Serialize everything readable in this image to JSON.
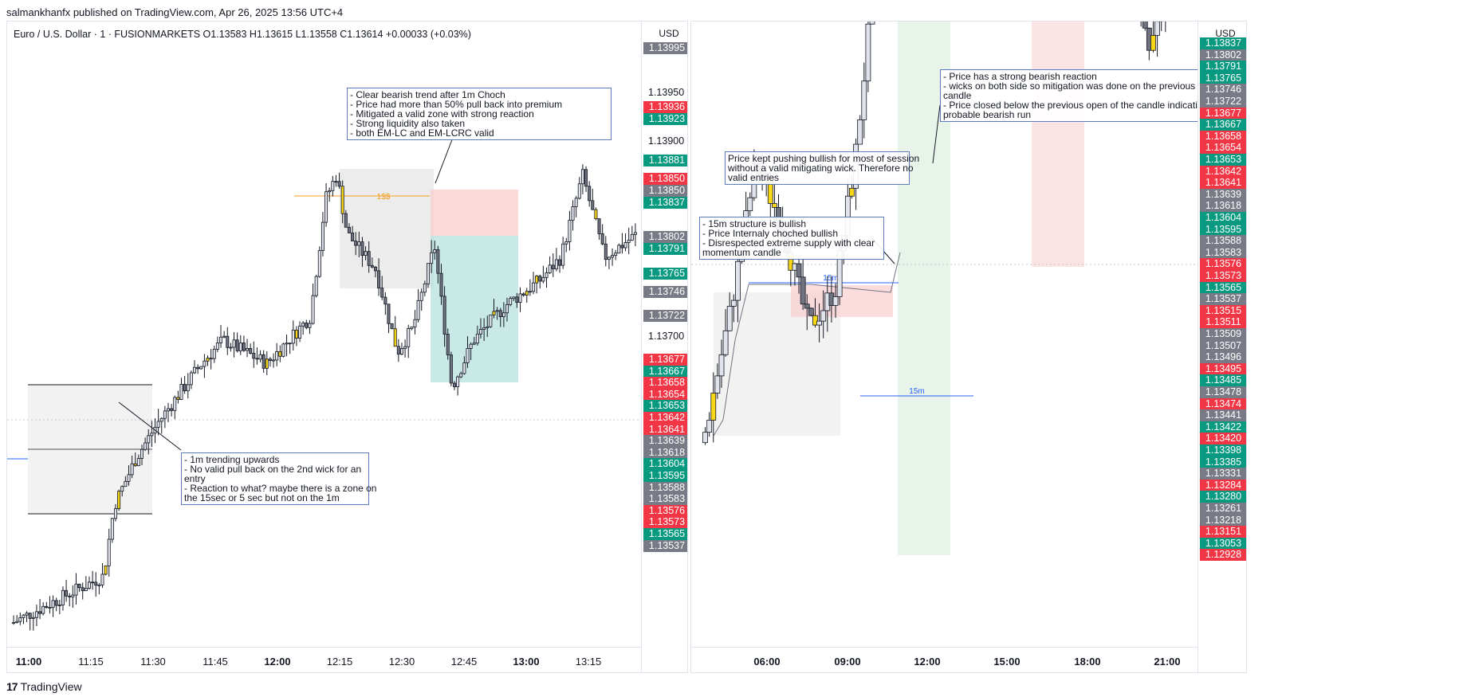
{
  "header": {
    "publisher_text": "salmankhanfx published on TradingView.com, Apr 26, 2025 13:56 UTC+4"
  },
  "footer": {
    "brand": "TradingView",
    "logo_glyph": "17"
  },
  "left_chart": {
    "legend": "Euro / U.S. Dollar · 1 · FUSIONMARKETS   O1.13583   H1.13615   L1.13558   C1.13614   +0.00033 (+0.03%)",
    "currency": "USD",
    "price_ticks": [
      "1.13950",
      "1.13900",
      "1.13700"
    ],
    "price_badges": [
      {
        "text": "1.13995",
        "color": "gray"
      },
      {
        "text": "1.13936",
        "color": "red"
      },
      {
        "text": "1.13923",
        "color": "green"
      },
      {
        "text": "1.13881",
        "color": "green"
      },
      {
        "text": "1.13850",
        "color": "red"
      },
      {
        "text": "1.13850",
        "color": "gray"
      },
      {
        "text": "1.13837",
        "color": "green"
      },
      {
        "text": "1.13802",
        "color": "gray"
      },
      {
        "text": "1.13791",
        "color": "green"
      },
      {
        "text": "1.13765",
        "color": "green"
      },
      {
        "text": "1.13746",
        "color": "gray"
      },
      {
        "text": "1.13722",
        "color": "gray"
      },
      {
        "text": "1.13677",
        "color": "red"
      },
      {
        "text": "1.13667",
        "color": "green"
      },
      {
        "text": "1.13658",
        "color": "red"
      },
      {
        "text": "1.13654",
        "color": "red"
      },
      {
        "text": "1.13653",
        "color": "green"
      },
      {
        "text": "1.13642",
        "color": "red"
      },
      {
        "text": "1.13641",
        "color": "red"
      },
      {
        "text": "1.13639",
        "color": "gray"
      },
      {
        "text": "1.13618",
        "color": "gray"
      },
      {
        "text": "1.13604",
        "color": "green"
      },
      {
        "text": "1.13595",
        "color": "green"
      },
      {
        "text": "1.13588",
        "color": "gray"
      },
      {
        "text": "1.13583",
        "color": "gray"
      },
      {
        "text": "1.13576",
        "color": "red"
      },
      {
        "text": "1.13573",
        "color": "red"
      },
      {
        "text": "1.13565",
        "color": "green"
      },
      {
        "text": "1.13537",
        "color": "gray"
      }
    ],
    "time_labels": [
      {
        "text": "11:00",
        "bold": true
      },
      {
        "text": "11:15",
        "bold": false
      },
      {
        "text": "11:30",
        "bold": false
      },
      {
        "text": "11:45",
        "bold": false
      },
      {
        "text": "12:00",
        "bold": true
      },
      {
        "text": "12:15",
        "bold": false
      },
      {
        "text": "12:30",
        "bold": false
      },
      {
        "text": "12:45",
        "bold": false
      },
      {
        "text": "13:00",
        "bold": true
      },
      {
        "text": "13:15",
        "bold": false
      }
    ],
    "annotations": {
      "bearish_note": [
        "- Clear bearish trend after 1m Choch",
        "- Price had more than 50% pull back into premium",
        "- Mitigated a valid zone with strong reaction",
        "- Strong liquidity also taken",
        "- both EM-LC and EM-LCRC valid"
      ],
      "trend_note": [
        "- 1m trending upwards",
        "- No valid pull back on the 2nd wick for an",
        "entry",
        "- Reaction to what? maybe there is a zone on",
        "the 15sec or 5 sec but not on the 1m"
      ],
      "liquidity_label": "1$$"
    }
  },
  "right_chart": {
    "currency": "USD",
    "price_badges": [
      {
        "text": "1.13837",
        "color": "green"
      },
      {
        "text": "1.13802",
        "color": "gray"
      },
      {
        "text": "1.13791",
        "color": "green"
      },
      {
        "text": "1.13765",
        "color": "green"
      },
      {
        "text": "1.13746",
        "color": "gray"
      },
      {
        "text": "1.13722",
        "color": "gray"
      },
      {
        "text": "1.13677",
        "color": "red"
      },
      {
        "text": "1.13667",
        "color": "green"
      },
      {
        "text": "1.13658",
        "color": "red"
      },
      {
        "text": "1.13654",
        "color": "red"
      },
      {
        "text": "1.13653",
        "color": "green"
      },
      {
        "text": "1.13642",
        "color": "red"
      },
      {
        "text": "1.13641",
        "color": "red"
      },
      {
        "text": "1.13639",
        "color": "gray"
      },
      {
        "text": "1.13618",
        "color": "gray"
      },
      {
        "text": "1.13604",
        "color": "green"
      },
      {
        "text": "1.13595",
        "color": "green"
      },
      {
        "text": "1.13588",
        "color": "gray"
      },
      {
        "text": "1.13583",
        "color": "gray"
      },
      {
        "text": "1.13576",
        "color": "red"
      },
      {
        "text": "1.13573",
        "color": "red"
      },
      {
        "text": "1.13565",
        "color": "green"
      },
      {
        "text": "1.13537",
        "color": "gray"
      },
      {
        "text": "1.13515",
        "color": "red"
      },
      {
        "text": "1.13511",
        "color": "red"
      },
      {
        "text": "1.13509",
        "color": "gray"
      },
      {
        "text": "1.13507",
        "color": "gray"
      },
      {
        "text": "1.13496",
        "color": "gray"
      },
      {
        "text": "1.13495",
        "color": "red"
      },
      {
        "text": "1.13485",
        "color": "green"
      },
      {
        "text": "1.13478",
        "color": "gray"
      },
      {
        "text": "1.13474",
        "color": "red"
      },
      {
        "text": "1.13441",
        "color": "gray"
      },
      {
        "text": "1.13422",
        "color": "green"
      },
      {
        "text": "1.13420",
        "color": "red"
      },
      {
        "text": "1.13398",
        "color": "green"
      },
      {
        "text": "1.13385",
        "color": "green"
      },
      {
        "text": "1.13331",
        "color": "gray"
      },
      {
        "text": "1.13284",
        "color": "red"
      },
      {
        "text": "1.13280",
        "color": "green"
      },
      {
        "text": "1.13261",
        "color": "gray"
      },
      {
        "text": "1.13218",
        "color": "gray"
      },
      {
        "text": "1.13151",
        "color": "red"
      },
      {
        "text": "1.13053",
        "color": "green"
      },
      {
        "text": "1.12928",
        "color": "red"
      }
    ],
    "time_labels": [
      {
        "text": "06:00",
        "bold": true
      },
      {
        "text": "09:00",
        "bold": true
      },
      {
        "text": "12:00",
        "bold": true
      },
      {
        "text": "15:00",
        "bold": true
      },
      {
        "text": "18:00",
        "bold": true
      },
      {
        "text": "21:00",
        "bold": true
      }
    ],
    "annotations": {
      "bearish_reaction_note": [
        "- Price has a strong bearish reaction",
        "- wicks on both side so mitigation was done on the previous bullish",
        "candle",
        "- Price closed below the previous open of the candle indicating a",
        "probable bearish run"
      ],
      "bullish_push_note": [
        "Price kept pushing bullish for most of session",
        "without a valid mitigating wick. Therefore no",
        "valid entries"
      ],
      "structure_note": [
        "- 15m structure is bullish",
        "- Price Internaly choched bullish",
        "- Disrespected extreme supply with clear",
        "momentum candle"
      ],
      "label_15m_top": "15m",
      "label_15m_bottom": "15m"
    }
  },
  "colors": {
    "red": "#f23645",
    "green": "#089981",
    "gray": "#787b86",
    "bull_candle": "#e0e3eb",
    "bear_candle": "#707480",
    "highlight_candle": "#f7d716",
    "sell_zone": "#f9cfd0",
    "buy_zone": "#b2dfdb",
    "grey_zone": "#eeeeee"
  },
  "chart_data": [
    {
      "type": "candlestick",
      "title": "Euro / U.S. Dollar · 1 · FUSIONMARKETS",
      "timeframe": "1",
      "ohlc_last": {
        "open": 1.13583,
        "high": 1.13615,
        "low": 1.13558,
        "close": 1.13614,
        "change": 0.00033,
        "change_pct": 0.03
      },
      "x_ticks": [
        "11:00",
        "11:15",
        "11:30",
        "11:45",
        "12:00",
        "12:15",
        "12:30",
        "12:45",
        "13:00",
        "13:15"
      ],
      "y_ticks": [
        1.1395,
        1.139,
        1.137
      ],
      "ylim": [
        1.135,
        1.1403
      ],
      "price_path": [
        [
          10.58,
          1.1352
        ],
        [
          11.0,
          1.1356
        ],
        [
          11.05,
          1.1362
        ],
        [
          11.15,
          1.1366
        ],
        [
          11.25,
          1.1369
        ],
        [
          11.45,
          1.1374
        ],
        [
          11.55,
          1.1376
        ],
        [
          11.75,
          1.1374
        ],
        [
          11.95,
          1.1378
        ],
        [
          12.02,
          1.1388
        ],
        [
          12.07,
          1.139
        ],
        [
          12.12,
          1.1385
        ],
        [
          12.25,
          1.1382
        ],
        [
          12.35,
          1.1375
        ],
        [
          12.42,
          1.1377
        ],
        [
          12.52,
          1.1384
        ],
        [
          12.6,
          1.1372
        ],
        [
          12.7,
          1.1376
        ],
        [
          12.85,
          1.1379
        ],
        [
          13.0,
          1.1381
        ],
        [
          13.1,
          1.1383
        ],
        [
          13.2,
          1.139
        ],
        [
          13.3,
          1.1383
        ],
        [
          13.45,
          1.1385
        ]
      ],
      "zones": [
        {
          "kind": "sell",
          "top": 1.1385,
          "bottom": 1.1379
        },
        {
          "kind": "buy",
          "top": 1.1379,
          "bottom": 1.136
        }
      ]
    },
    {
      "type": "candlestick",
      "timeframe": "15m",
      "x_ticks": [
        "06:00",
        "09:00",
        "12:00",
        "15:00",
        "18:00",
        "21:00"
      ],
      "ylim": [
        1.129,
        1.1388
      ],
      "price_path": [
        [
          4.0,
          1.1322
        ],
        [
          5.0,
          1.1342
        ],
        [
          6.0,
          1.1366
        ],
        [
          7.0,
          1.1356
        ],
        [
          8.0,
          1.134
        ],
        [
          9.0,
          1.1346
        ],
        [
          9.8,
          1.1368
        ],
        [
          10.3,
          1.1388
        ],
        [
          11.3,
          1.1402
        ],
        [
          12.2,
          1.1396
        ],
        [
          13.0,
          1.1416
        ],
        [
          14.0,
          1.141
        ],
        [
          15.0,
          1.142
        ],
        [
          16.3,
          1.1396
        ],
        [
          17.0,
          1.1408
        ],
        [
          18.0,
          1.1402
        ],
        [
          19.0,
          1.141
        ],
        [
          20.0,
          1.1396
        ],
        [
          21.0,
          1.1384
        ],
        [
          22.0,
          1.1395
        ],
        [
          22.5,
          1.1392
        ]
      ],
      "shaded_sessions": [
        {
          "kind": "green",
          "from": "10:30",
          "to": "12:30"
        },
        {
          "kind": "red",
          "from": "16:00",
          "to": "18:00"
        }
      ]
    }
  ]
}
